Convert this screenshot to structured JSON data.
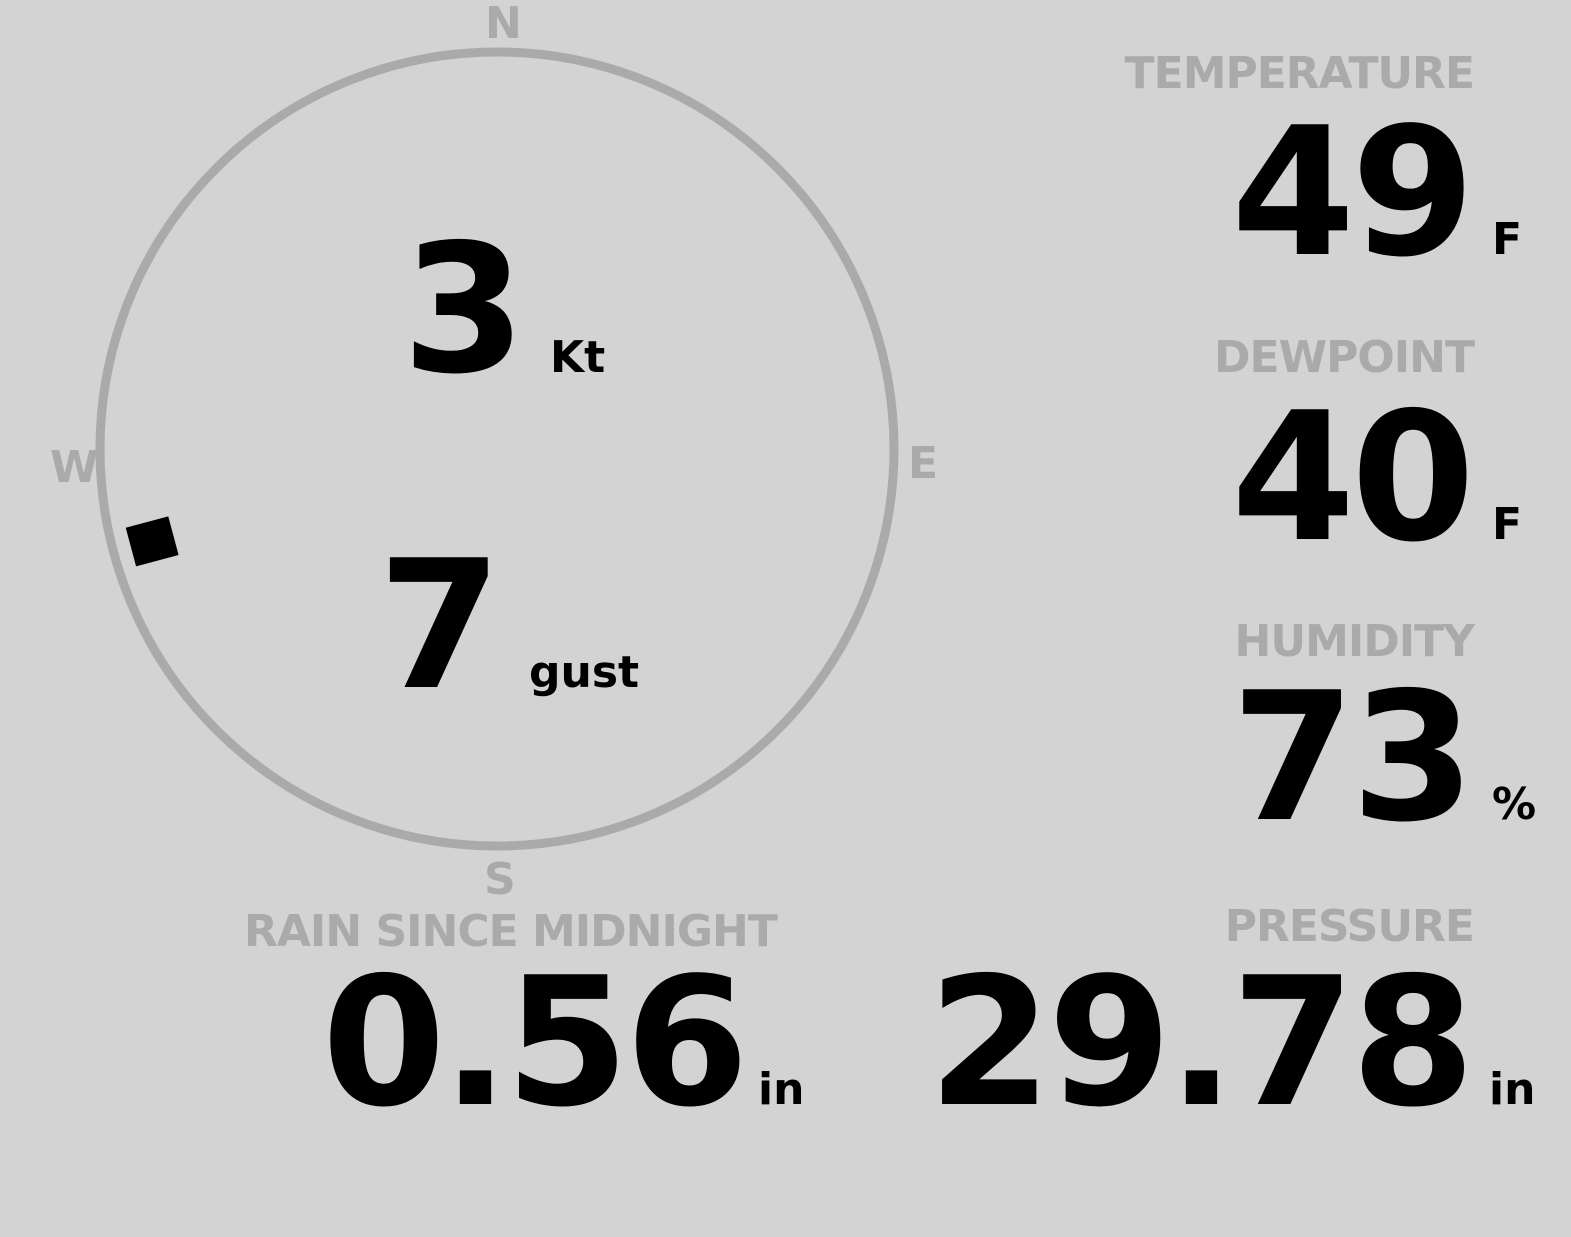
{
  "wind": {
    "compass": {
      "n": "N",
      "e": "E",
      "s": "S",
      "w": "W"
    },
    "speed": "3",
    "speed_unit": "Kt",
    "gust": "7",
    "gust_unit": "gust",
    "direction_deg": 255,
    "ring_color": "#aaaaaa"
  },
  "temperature": {
    "label": "TEMPERATURE",
    "value": "49",
    "unit": "F"
  },
  "dewpoint": {
    "label": "DEWPOINT",
    "value": "40",
    "unit": "F"
  },
  "humidity": {
    "label": "HUMIDITY",
    "value": "73",
    "unit": "%"
  },
  "rain": {
    "label": "RAIN SINCE MIDNIGHT",
    "value": "0.56",
    "unit": "in"
  },
  "pressure": {
    "label": "PRESSURE",
    "value": "29.78",
    "unit": "in"
  }
}
